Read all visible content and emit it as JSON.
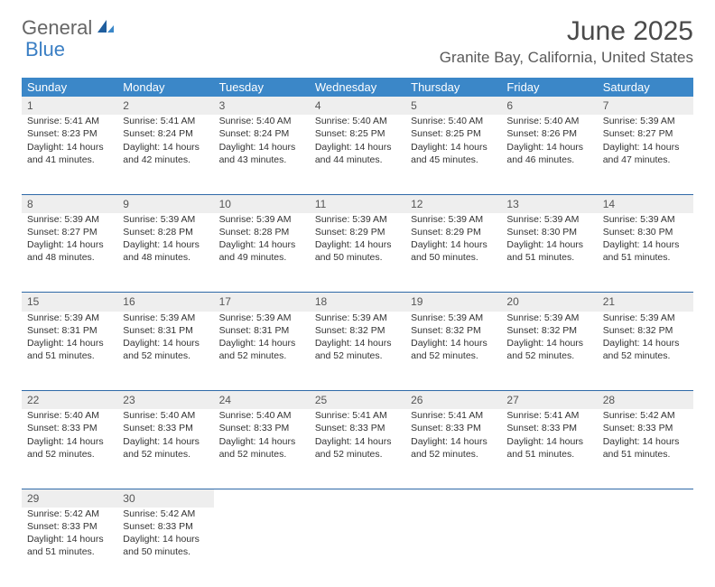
{
  "logo": {
    "text1": "General",
    "text2": "Blue"
  },
  "title": "June 2025",
  "location": "Granite Bay, California, United States",
  "colors": {
    "header_bg": "#3b87c8",
    "header_text": "#ffffff",
    "daynum_bg": "#eeeeee",
    "separator": "#2f6aa8",
    "body_text": "#333333",
    "logo_blue": "#3b7fc4"
  },
  "weekdays": [
    "Sunday",
    "Monday",
    "Tuesday",
    "Wednesday",
    "Thursday",
    "Friday",
    "Saturday"
  ],
  "weeks": [
    [
      {
        "n": "1",
        "sr": "Sunrise: 5:41 AM",
        "ss": "Sunset: 8:23 PM",
        "d1": "Daylight: 14 hours",
        "d2": "and 41 minutes."
      },
      {
        "n": "2",
        "sr": "Sunrise: 5:41 AM",
        "ss": "Sunset: 8:24 PM",
        "d1": "Daylight: 14 hours",
        "d2": "and 42 minutes."
      },
      {
        "n": "3",
        "sr": "Sunrise: 5:40 AM",
        "ss": "Sunset: 8:24 PM",
        "d1": "Daylight: 14 hours",
        "d2": "and 43 minutes."
      },
      {
        "n": "4",
        "sr": "Sunrise: 5:40 AM",
        "ss": "Sunset: 8:25 PM",
        "d1": "Daylight: 14 hours",
        "d2": "and 44 minutes."
      },
      {
        "n": "5",
        "sr": "Sunrise: 5:40 AM",
        "ss": "Sunset: 8:25 PM",
        "d1": "Daylight: 14 hours",
        "d2": "and 45 minutes."
      },
      {
        "n": "6",
        "sr": "Sunrise: 5:40 AM",
        "ss": "Sunset: 8:26 PM",
        "d1": "Daylight: 14 hours",
        "d2": "and 46 minutes."
      },
      {
        "n": "7",
        "sr": "Sunrise: 5:39 AM",
        "ss": "Sunset: 8:27 PM",
        "d1": "Daylight: 14 hours",
        "d2": "and 47 minutes."
      }
    ],
    [
      {
        "n": "8",
        "sr": "Sunrise: 5:39 AM",
        "ss": "Sunset: 8:27 PM",
        "d1": "Daylight: 14 hours",
        "d2": "and 48 minutes."
      },
      {
        "n": "9",
        "sr": "Sunrise: 5:39 AM",
        "ss": "Sunset: 8:28 PM",
        "d1": "Daylight: 14 hours",
        "d2": "and 48 minutes."
      },
      {
        "n": "10",
        "sr": "Sunrise: 5:39 AM",
        "ss": "Sunset: 8:28 PM",
        "d1": "Daylight: 14 hours",
        "d2": "and 49 minutes."
      },
      {
        "n": "11",
        "sr": "Sunrise: 5:39 AM",
        "ss": "Sunset: 8:29 PM",
        "d1": "Daylight: 14 hours",
        "d2": "and 50 minutes."
      },
      {
        "n": "12",
        "sr": "Sunrise: 5:39 AM",
        "ss": "Sunset: 8:29 PM",
        "d1": "Daylight: 14 hours",
        "d2": "and 50 minutes."
      },
      {
        "n": "13",
        "sr": "Sunrise: 5:39 AM",
        "ss": "Sunset: 8:30 PM",
        "d1": "Daylight: 14 hours",
        "d2": "and 51 minutes."
      },
      {
        "n": "14",
        "sr": "Sunrise: 5:39 AM",
        "ss": "Sunset: 8:30 PM",
        "d1": "Daylight: 14 hours",
        "d2": "and 51 minutes."
      }
    ],
    [
      {
        "n": "15",
        "sr": "Sunrise: 5:39 AM",
        "ss": "Sunset: 8:31 PM",
        "d1": "Daylight: 14 hours",
        "d2": "and 51 minutes."
      },
      {
        "n": "16",
        "sr": "Sunrise: 5:39 AM",
        "ss": "Sunset: 8:31 PM",
        "d1": "Daylight: 14 hours",
        "d2": "and 52 minutes."
      },
      {
        "n": "17",
        "sr": "Sunrise: 5:39 AM",
        "ss": "Sunset: 8:31 PM",
        "d1": "Daylight: 14 hours",
        "d2": "and 52 minutes."
      },
      {
        "n": "18",
        "sr": "Sunrise: 5:39 AM",
        "ss": "Sunset: 8:32 PM",
        "d1": "Daylight: 14 hours",
        "d2": "and 52 minutes."
      },
      {
        "n": "19",
        "sr": "Sunrise: 5:39 AM",
        "ss": "Sunset: 8:32 PM",
        "d1": "Daylight: 14 hours",
        "d2": "and 52 minutes."
      },
      {
        "n": "20",
        "sr": "Sunrise: 5:39 AM",
        "ss": "Sunset: 8:32 PM",
        "d1": "Daylight: 14 hours",
        "d2": "and 52 minutes."
      },
      {
        "n": "21",
        "sr": "Sunrise: 5:39 AM",
        "ss": "Sunset: 8:32 PM",
        "d1": "Daylight: 14 hours",
        "d2": "and 52 minutes."
      }
    ],
    [
      {
        "n": "22",
        "sr": "Sunrise: 5:40 AM",
        "ss": "Sunset: 8:33 PM",
        "d1": "Daylight: 14 hours",
        "d2": "and 52 minutes."
      },
      {
        "n": "23",
        "sr": "Sunrise: 5:40 AM",
        "ss": "Sunset: 8:33 PM",
        "d1": "Daylight: 14 hours",
        "d2": "and 52 minutes."
      },
      {
        "n": "24",
        "sr": "Sunrise: 5:40 AM",
        "ss": "Sunset: 8:33 PM",
        "d1": "Daylight: 14 hours",
        "d2": "and 52 minutes."
      },
      {
        "n": "25",
        "sr": "Sunrise: 5:41 AM",
        "ss": "Sunset: 8:33 PM",
        "d1": "Daylight: 14 hours",
        "d2": "and 52 minutes."
      },
      {
        "n": "26",
        "sr": "Sunrise: 5:41 AM",
        "ss": "Sunset: 8:33 PM",
        "d1": "Daylight: 14 hours",
        "d2": "and 52 minutes."
      },
      {
        "n": "27",
        "sr": "Sunrise: 5:41 AM",
        "ss": "Sunset: 8:33 PM",
        "d1": "Daylight: 14 hours",
        "d2": "and 51 minutes."
      },
      {
        "n": "28",
        "sr": "Sunrise: 5:42 AM",
        "ss": "Sunset: 8:33 PM",
        "d1": "Daylight: 14 hours",
        "d2": "and 51 minutes."
      }
    ],
    [
      {
        "n": "29",
        "sr": "Sunrise: 5:42 AM",
        "ss": "Sunset: 8:33 PM",
        "d1": "Daylight: 14 hours",
        "d2": "and 51 minutes."
      },
      {
        "n": "30",
        "sr": "Sunrise: 5:42 AM",
        "ss": "Sunset: 8:33 PM",
        "d1": "Daylight: 14 hours",
        "d2": "and 50 minutes."
      },
      null,
      null,
      null,
      null,
      null
    ]
  ]
}
